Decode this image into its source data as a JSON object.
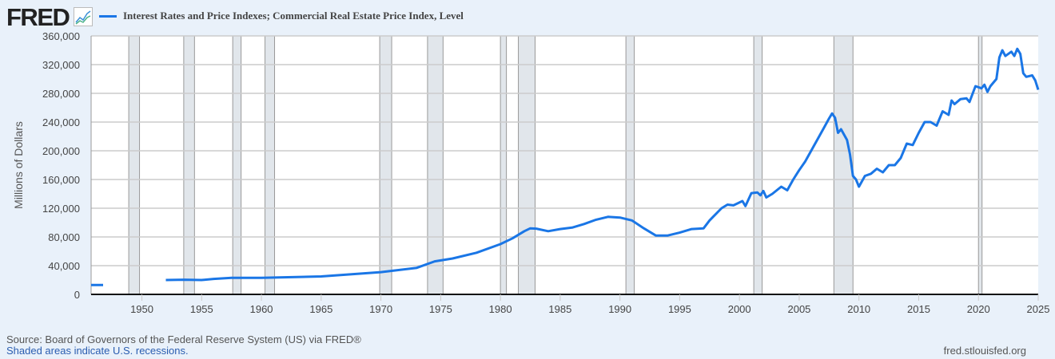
{
  "header": {
    "logo": "FRED",
    "logo_icon": "line-chart-icon"
  },
  "colors": {
    "line": "#1a76e6",
    "recession": "#e1e6eb",
    "background": "#e9f1fa"
  },
  "chart_data": {
    "type": "line",
    "title": "Interest Rates and Price Indexes; Commercial Real Estate Price Index, Level",
    "xlabel": "",
    "ylabel": "Millions of Dollars",
    "xlim": [
      1945.75,
      2025.0
    ],
    "ylim": [
      0,
      360000
    ],
    "xticks": [
      1950,
      1955,
      1960,
      1965,
      1970,
      1975,
      1980,
      1985,
      1990,
      1995,
      2000,
      2005,
      2010,
      2015,
      2020,
      2025
    ],
    "yticks": [
      0,
      40000,
      80000,
      120000,
      160000,
      200000,
      240000,
      280000,
      320000,
      360000
    ],
    "ytick_labels": [
      "0",
      "40,000",
      "80,000",
      "120,000",
      "160,000",
      "200,000",
      "240,000",
      "280,000",
      "320,000",
      "360,000"
    ],
    "grid": true,
    "recessions": [
      [
        1948.9,
        1949.8
      ],
      [
        1953.5,
        1954.4
      ],
      [
        1957.6,
        1958.3
      ],
      [
        1960.3,
        1961.1
      ],
      [
        1969.9,
        1970.9
      ],
      [
        1973.9,
        1975.2
      ],
      [
        1980.0,
        1980.5
      ],
      [
        1981.5,
        1982.9
      ],
      [
        1990.5,
        1991.2
      ],
      [
        2001.2,
        2001.9
      ],
      [
        2007.9,
        2009.5
      ],
      [
        2020.0,
        2020.3
      ]
    ],
    "series": [
      {
        "name": "Interest Rates and Price Indexes; Commercial Real Estate Price Index, Level",
        "x": [
          1945.75,
          1946.0,
          1946.75,
          null,
          1952,
          1953.5,
          1955,
          1956,
          1957.5,
          1960,
          1965,
          1970,
          1973,
          1974.5,
          1976,
          1978,
          1980,
          1981,
          1982,
          1982.5,
          1983,
          1984,
          1985,
          1986,
          1987,
          1988,
          1989,
          1990,
          1991,
          1992,
          1993,
          1994,
          1995,
          1996,
          1997,
          1997.5,
          1998.5,
          1999,
          1999.5,
          2000.25,
          2000.5,
          2001,
          2001.5,
          2001.75,
          2002,
          2002.25,
          2002.75,
          2003.5,
          2004,
          2004.5,
          2005,
          2005.5,
          2006,
          2006.5,
          2007,
          2007.5,
          2007.75,
          2008,
          2008.25,
          2008.5,
          2009,
          2009.25,
          2009.5,
          2009.75,
          2010,
          2010.5,
          2011,
          2011.5,
          2012,
          2012.5,
          2013,
          2013.5,
          2014,
          2014.5,
          2015,
          2015.5,
          2016,
          2016.5,
          2017,
          2017.5,
          2017.75,
          2018,
          2018.5,
          2019,
          2019.25,
          2019.75,
          2020.25,
          2020.5,
          2020.75,
          2021,
          2021.5,
          2021.75,
          2022,
          2022.25,
          2022.75,
          2023,
          2023.25,
          2023.5,
          2023.75,
          2024,
          2024.5,
          2024.75,
          2025
        ],
        "values": [
          13000,
          13000,
          13000,
          null,
          20000,
          20500,
          20000,
          21500,
          23000,
          23000,
          25000,
          31000,
          37000,
          46000,
          50000,
          58000,
          70000,
          78000,
          88000,
          92000,
          91500,
          88000,
          91000,
          93000,
          98000,
          104000,
          108000,
          107000,
          103000,
          92000,
          82000,
          82000,
          86000,
          91000,
          92000,
          103000,
          120000,
          125000,
          124000,
          130000,
          123000,
          141000,
          142000,
          138000,
          144000,
          135000,
          140000,
          150000,
          145000,
          160000,
          173000,
          185000,
          200000,
          215000,
          230000,
          245000,
          252000,
          246000,
          225000,
          230000,
          215000,
          195000,
          165000,
          160000,
          150000,
          165000,
          168000,
          175000,
          170000,
          180000,
          180000,
          190000,
          210000,
          208000,
          225000,
          240000,
          240000,
          235000,
          255000,
          250000,
          270000,
          265000,
          272000,
          273000,
          268000,
          290000,
          287000,
          292000,
          282000,
          290000,
          300000,
          330000,
          340000,
          332000,
          338000,
          332000,
          342000,
          335000,
          308000,
          303000,
          305000,
          298000,
          285000
        ]
      }
    ]
  },
  "footer": {
    "source": "Source: Board of Governors of the Federal Reserve System (US) via FRED®",
    "note": "Shaded areas indicate U.S. recessions.",
    "site": "fred.stlouisfed.org"
  }
}
